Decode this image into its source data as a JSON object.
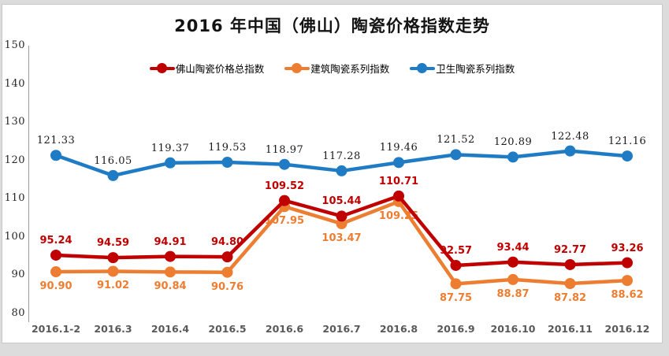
{
  "title": "2016 年中国（佛山）陶瓷价格指数走势",
  "chart_data": {
    "type": "line",
    "title": "2016 年中国（佛山）陶瓷价格指数走势",
    "categories": [
      "2016.1-2",
      "2016.3",
      "2016.4",
      "2016.5",
      "2016.6",
      "2016.7",
      "2016.8",
      "2016.9",
      "2016.10",
      "2016.11",
      "2016.12"
    ],
    "series": [
      {
        "key": "total-index",
        "name": "佛山陶瓷价格总指数",
        "color": "#C00000",
        "label_color": "#C00000",
        "label_position": "above",
        "label_style": "bold",
        "values": [
          95.24,
          94.59,
          94.91,
          94.8,
          109.52,
          105.44,
          110.71,
          92.57,
          93.44,
          92.77,
          93.26
        ],
        "data_labels": [
          "95.24",
          "94.59",
          "94.91",
          "94.80",
          "109.52",
          "105.44",
          "110.71",
          "92.57",
          "93.44",
          "92.77",
          "93.26"
        ]
      },
      {
        "key": "building-series",
        "name": "建筑陶瓷系列指数",
        "color": "#ED7D31",
        "label_color": "#ED7D31",
        "label_position": "below",
        "label_style": "bold",
        "values": [
          90.9,
          91.02,
          90.84,
          90.76,
          107.95,
          103.47,
          109.25,
          87.75,
          88.87,
          87.82,
          88.62
        ],
        "data_labels": [
          "90.90",
          "91.02",
          "90.84",
          "90.76",
          "107.95",
          "103.47",
          "109.25",
          "87.75",
          "88.87",
          "87.82",
          "88.62"
        ]
      },
      {
        "key": "sanitary-series",
        "name": "卫生陶瓷系列指数",
        "color": "#1E7BC4",
        "label_color": "#1A1A1A",
        "label_position": "above",
        "label_style": "serif",
        "values": [
          121.33,
          116.05,
          119.37,
          119.53,
          118.97,
          117.28,
          119.46,
          121.52,
          120.89,
          122.48,
          121.16
        ],
        "data_labels": [
          "121.33",
          "116.05",
          "119.37",
          "119.53",
          "118.97",
          "117.28",
          "119.46",
          "121.52",
          "120.89",
          "122.48",
          "121.16"
        ]
      }
    ],
    "ylim": [
      80,
      150
    ],
    "yticks": [
      80,
      90,
      100,
      110,
      120,
      130,
      140,
      150
    ],
    "xlabel": "",
    "ylabel": "",
    "grid": false,
    "legend_position": "top"
  }
}
